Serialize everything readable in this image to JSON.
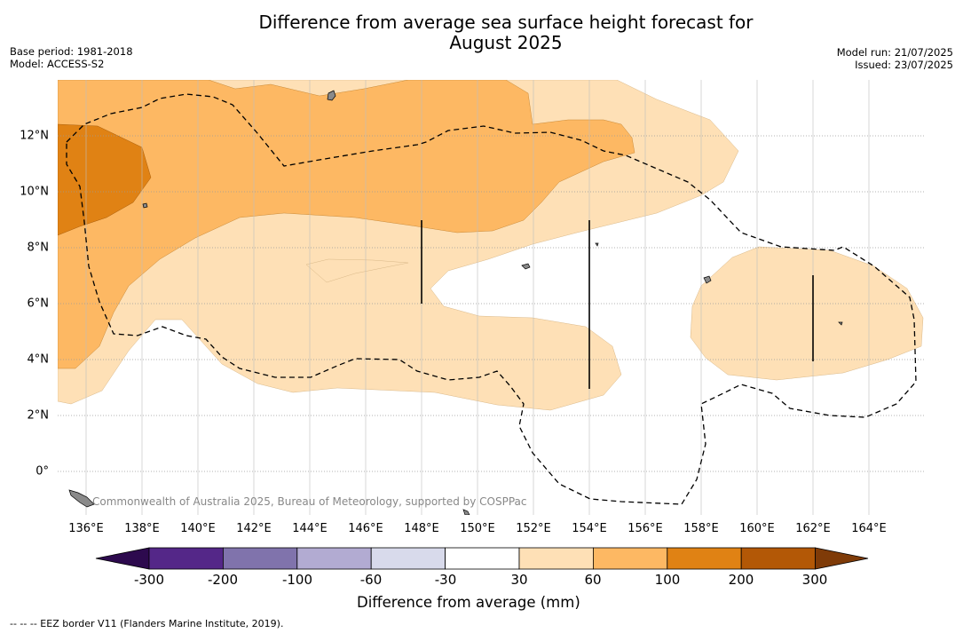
{
  "title_line1": "Difference from average sea surface height forecast for",
  "title_line2": "August 2025",
  "meta_left": [
    "Base period: 1981-2018",
    "Model: ACCESS-S2"
  ],
  "meta_right": [
    "Model run: 21/07/2025",
    "Issued: 23/07/2025"
  ],
  "longitude_ticks": [
    "136°E",
    "138°E",
    "140°E",
    "142°E",
    "144°E",
    "146°E",
    "148°E",
    "150°E",
    "152°E",
    "154°E",
    "156°E",
    "158°E",
    "160°E",
    "162°E",
    "164°E"
  ],
  "latitude_ticks": [
    "12°N",
    "10°N",
    "8°N",
    "6°N",
    "4°N",
    "2°N",
    "0°"
  ],
  "credit": "Commonwealth of Australia 2025, Bureau of Meteorology, supported by COSPPac",
  "colorbar": {
    "label": "Difference from average (mm)",
    "ticks": [
      "-300",
      "-200",
      "-100",
      "-60",
      "-30",
      "30",
      "60",
      "100",
      "200",
      "300"
    ],
    "colors": [
      "#2d0a4e",
      "#542788",
      "#8073ac",
      "#b2abd2",
      "#d8daeb",
      "#ffffff",
      "#fee0b6",
      "#fdb863",
      "#e08214",
      "#b35806",
      "#7f3b08"
    ]
  },
  "footnote": "--  --  -- EEZ border V11 (Flanders Marine Institute, 2019)."
}
